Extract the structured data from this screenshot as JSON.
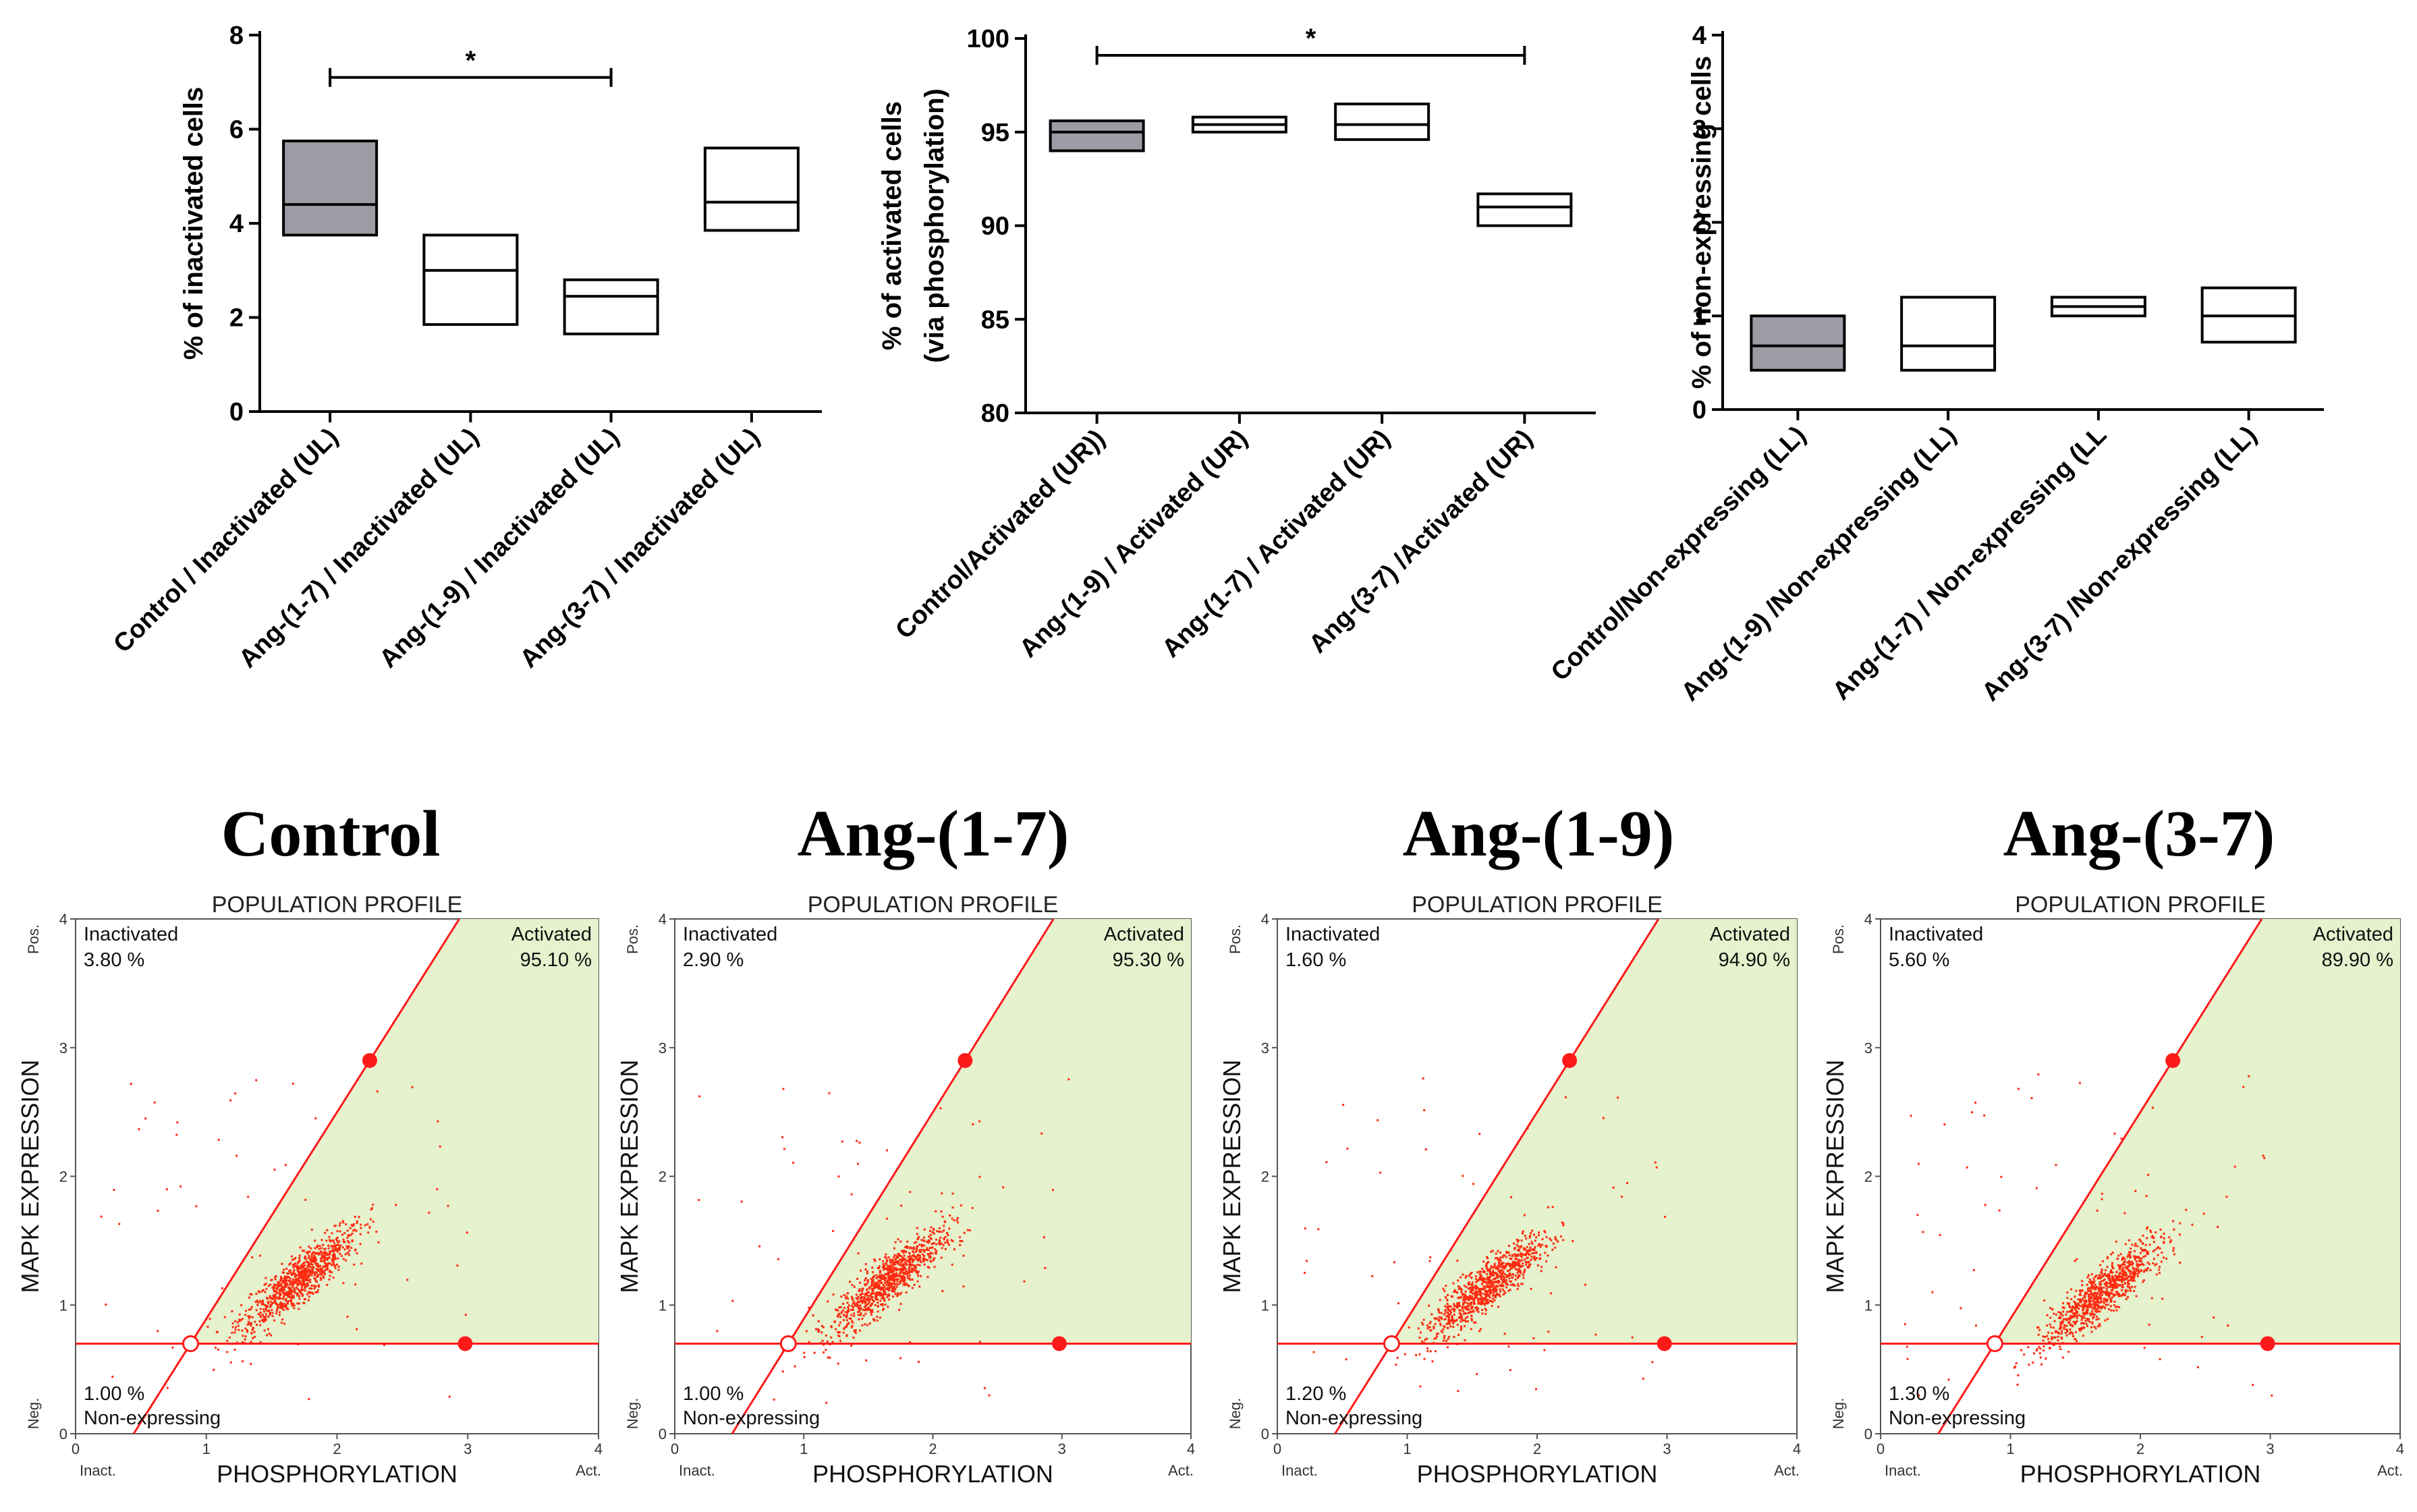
{
  "chart_data": [
    {
      "type": "box",
      "id": "inactivated",
      "ylabel": "% of inactivated cells",
      "ylim": [
        0,
        8
      ],
      "yticks": [
        0,
        2,
        4,
        6,
        8
      ],
      "ytick_labels": [
        "0",
        "2",
        "4",
        "6",
        "8"
      ],
      "categories": [
        "Control / Inactivated (UL)",
        "Ang-(1-7) / Inactivated (UL)",
        "Ang-(1-9) / Inactivated (UL)",
        "Ang-(3-7) / Inactivated (UL)"
      ],
      "boxes": [
        {
          "low": 3.75,
          "median": 4.4,
          "high": 5.75,
          "filled": true
        },
        {
          "low": 1.85,
          "median": 3.0,
          "high": 3.75,
          "filled": false
        },
        {
          "low": 1.65,
          "median": 2.45,
          "high": 2.8,
          "filled": false
        },
        {
          "low": 3.85,
          "median": 4.45,
          "high": 5.6,
          "filled": false
        }
      ],
      "significance": {
        "from": 0,
        "to": 2,
        "y": 7.1,
        "label": "*"
      }
    },
    {
      "type": "box",
      "id": "activated",
      "ylabel": "% of activated cells",
      "ylabel2": "(via phosphorylation)",
      "ylim": [
        80,
        100
      ],
      "yticks": [
        80,
        85,
        90,
        95,
        100
      ],
      "ytick_labels": [
        "80",
        "85",
        "90",
        "95",
        "100"
      ],
      "categories": [
        "Control/Activated (UR))",
        "Ang-(1-9) / Activated (UR)",
        "Ang-(1-7) / Activated (UR)",
        "Ang-(3-7) /Activated (UR)"
      ],
      "boxes": [
        {
          "low": 94.0,
          "median": 95.0,
          "high": 95.6,
          "filled": true
        },
        {
          "low": 95.0,
          "median": 95.4,
          "high": 95.8,
          "filled": false
        },
        {
          "low": 94.6,
          "median": 95.4,
          "high": 96.5,
          "filled": false
        },
        {
          "low": 90.0,
          "median": 91.0,
          "high": 91.7,
          "filled": false
        }
      ],
      "significance": {
        "from": 0,
        "to": 3,
        "y": 99.1,
        "label": "*"
      }
    },
    {
      "type": "box",
      "id": "non-expressing",
      "ylabel": "% of non-expressing cells",
      "ylim": [
        0,
        4
      ],
      "yticks": [
        0,
        1,
        2,
        3,
        4
      ],
      "ytick_labels": [
        "0",
        "1",
        "2",
        "3",
        "4"
      ],
      "categories": [
        "Control/Non-expressing (LL)",
        "Ang-(1-9) /Non-expressing (LL)",
        "Ang-(1-7) / Non-expressing (LL",
        "Ang-(3-7) /Non-expressing (LL)"
      ],
      "boxes": [
        {
          "low": 0.42,
          "median": 0.68,
          "high": 1.0,
          "filled": true
        },
        {
          "low": 0.42,
          "median": 0.68,
          "high": 1.2,
          "filled": false
        },
        {
          "low": 1.0,
          "median": 1.1,
          "high": 1.2,
          "filled": false
        },
        {
          "low": 0.72,
          "median": 1.0,
          "high": 1.3,
          "filled": false
        }
      ]
    },
    {
      "type": "scatter",
      "id": "control-profile",
      "panel_title": "Control",
      "profile_title": "POPULATION PROFILE",
      "xlabel": "PHOSPHORYLATION",
      "ylabel": "MAPK EXPRESSION",
      "xlim": [
        0,
        4
      ],
      "ylim": [
        0,
        4
      ],
      "ticks": [
        "0",
        "1",
        "2",
        "3",
        "4"
      ],
      "x_end_labels": [
        "Inact.",
        "Act."
      ],
      "y_end_labels": [
        "Neg.",
        "Pos."
      ],
      "quadrants": {
        "inactivated": {
          "label": "Inactivated",
          "value": "3.80 %"
        },
        "activated": {
          "label": "Activated",
          "value": "95.10 %"
        },
        "non_expressing": {
          "label": "Non-expressing",
          "value": "1.00 %"
        }
      },
      "gate": {
        "hline_y": 0.7,
        "origin": [
          0.88,
          0.7
        ],
        "upper_point": [
          2.25,
          2.9
        ],
        "right_point": [
          2.98,
          0.7
        ]
      },
      "cluster_center": [
        1.7,
        1.2
      ]
    },
    {
      "type": "scatter",
      "id": "ang17-profile",
      "panel_title": "Ang-(1-7)",
      "profile_title": "POPULATION PROFILE",
      "xlabel": "PHOSPHORYLATION",
      "ylabel": "MAPK EXPRESSION",
      "xlim": [
        0,
        4
      ],
      "ylim": [
        0,
        4
      ],
      "ticks": [
        "0",
        "1",
        "2",
        "3",
        "4"
      ],
      "x_end_labels": [
        "Inact.",
        "Act."
      ],
      "y_end_labels": [
        "Neg.",
        "Pos."
      ],
      "quadrants": {
        "inactivated": {
          "label": "Inactivated",
          "value": "2.90 %"
        },
        "activated": {
          "label": "Activated",
          "value": "95.30 %"
        },
        "non_expressing": {
          "label": "Non-expressing",
          "value": "1.00 %"
        }
      },
      "gate": {
        "hline_y": 0.7,
        "origin": [
          0.88,
          0.7
        ],
        "upper_point": [
          2.25,
          2.9
        ],
        "right_point": [
          2.98,
          0.7
        ]
      },
      "cluster_center": [
        1.65,
        1.2
      ]
    },
    {
      "type": "scatter",
      "id": "ang19-profile",
      "panel_title": "Ang-(1-9)",
      "profile_title": "POPULATION PROFILE",
      "xlabel": "PHOSPHORYLATION",
      "ylabel": "MAPK EXPRESSION",
      "xlim": [
        0,
        4
      ],
      "ylim": [
        0,
        4
      ],
      "ticks": [
        "0",
        "1",
        "2",
        "3",
        "4"
      ],
      "x_end_labels": [
        "Inact.",
        "Act."
      ],
      "y_end_labels": [
        "Neg.",
        "Pos."
      ],
      "quadrants": {
        "inactivated": {
          "label": "Inactivated",
          "value": "1.60 %"
        },
        "activated": {
          "label": "Activated",
          "value": "94.90 %"
        },
        "non_expressing": {
          "label": "Non-expressing",
          "value": "1.20 %"
        }
      },
      "gate": {
        "hline_y": 0.7,
        "origin": [
          0.88,
          0.7
        ],
        "upper_point": [
          2.25,
          2.9
        ],
        "right_point": [
          2.98,
          0.7
        ]
      },
      "cluster_center": [
        1.6,
        1.15
      ]
    },
    {
      "type": "scatter",
      "id": "ang37-profile",
      "panel_title": "Ang-(3-7)",
      "profile_title": "POPULATION PROFILE",
      "xlabel": "PHOSPHORYLATION",
      "ylabel": "MAPK EXPRESSION",
      "xlim": [
        0,
        4
      ],
      "ylim": [
        0,
        4
      ],
      "ticks": [
        "0",
        "1",
        "2",
        "3",
        "4"
      ],
      "x_end_labels": [
        "Inact.",
        "Act."
      ],
      "y_end_labels": [
        "Neg.",
        "Pos."
      ],
      "quadrants": {
        "inactivated": {
          "label": "Inactivated",
          "value": "5.60 %"
        },
        "activated": {
          "label": "Activated",
          "value": "89.90 %"
        },
        "non_expressing": {
          "label": "Non-expressing",
          "value": "1.30 %"
        }
      },
      "gate": {
        "hline_y": 0.7,
        "origin": [
          0.88,
          0.7
        ],
        "upper_point": [
          2.25,
          2.9
        ],
        "right_point": [
          2.98,
          0.7
        ]
      },
      "cluster_center": [
        1.7,
        1.1
      ]
    }
  ],
  "colors": {
    "box_fill": "#9d9ca4",
    "gate_red": "#ff1a1a",
    "activated_fill": "#e6f1cd",
    "dot_red": "#ff2a10"
  }
}
